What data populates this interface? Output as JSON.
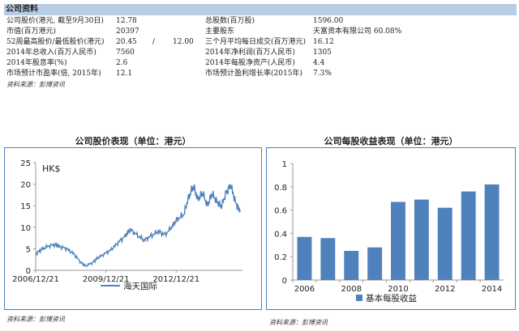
{
  "info": {
    "header": "公司资料",
    "rows": [
      {
        "l1": "公司股价(港元, 截至9月30日)",
        "v1": "12.78",
        "v1b": "",
        "v1c": "",
        "l2": "总股数(百万股)",
        "v2": "1596.00"
      },
      {
        "l1": "市值(百万港元)",
        "v1": "20397",
        "v1b": "",
        "v1c": "",
        "l2": "主要股东",
        "v2": "天富资本有限公司 60.08%"
      },
      {
        "l1": "52周最高股价/最低股价(港元)",
        "v1": "20.45",
        "v1b": "/",
        "v1c": "12.00",
        "l2": "三个月平均每日成交(百万港元)",
        "v2": "16.12"
      },
      {
        "l1": "2014年总收入(百万人民币)",
        "v1": "7560",
        "v1b": "",
        "v1c": "",
        "l2": "2014年净利润(百万人民币)",
        "v2": "1305"
      },
      {
        "l1": "2014年股息率(%)",
        "v1": "2.6",
        "v1b": "",
        "v1c": "",
        "l2": "2014年每股净资产(人民币)",
        "v2": "4.4"
      },
      {
        "l1": "市场预计市盈率(倍, 2015年)",
        "v1": "12.1",
        "v1b": "",
        "v1c": "",
        "l2": "市场预计盈利增长率(2015年)",
        "v2": "7.3%"
      }
    ],
    "source": "资料来源：彭博资讯"
  },
  "chart_data": [
    {
      "type": "line",
      "title": "公司股价表现（单位：港元）",
      "unit_label": "HK$",
      "ylim": [
        0,
        25
      ],
      "y_ticks": [
        "0",
        "5",
        "10",
        "15",
        "20",
        "25"
      ],
      "x_ticks": [
        "2006/12/21",
        "2009/12/21",
        "2012/12/21"
      ],
      "series": [
        {
          "name": "海天国际",
          "color": "#4f81bd",
          "x": [
            2006.97,
            2007.2,
            2007.5,
            2007.8,
            2008.0,
            2008.3,
            2008.6,
            2008.9,
            2009.1,
            2009.4,
            2009.6,
            2009.9,
            2010.2,
            2010.5,
            2010.8,
            2011.0,
            2011.3,
            2011.6,
            2011.9,
            2012.2,
            2012.5,
            2012.8,
            2013.0,
            2013.3,
            2013.5,
            2013.7,
            2013.9,
            2014.1,
            2014.3,
            2014.5,
            2014.7,
            2014.9,
            2015.1,
            2015.3,
            2015.5,
            2015.7
          ],
          "values": [
            3.8,
            4.8,
            5.6,
            6.0,
            5.5,
            5.0,
            3.8,
            1.8,
            1.0,
            1.8,
            2.8,
            3.8,
            4.8,
            6.5,
            8.0,
            9.5,
            8.2,
            7.0,
            8.0,
            9.0,
            8.3,
            10.2,
            11.8,
            13.0,
            17.0,
            19.5,
            16.5,
            18.0,
            15.0,
            17.8,
            16.0,
            14.8,
            18.0,
            19.8,
            15.8,
            13.5
          ]
        }
      ]
    },
    {
      "type": "bar",
      "title": "公司每股收益表现（单位：港元）",
      "categories": [
        "2006",
        "2007",
        "2008",
        "2009",
        "2010",
        "2011",
        "2012",
        "2013",
        "2014"
      ],
      "x_tick_labels": [
        "2006",
        "",
        "2008",
        "",
        "2010",
        "",
        "2012",
        "",
        "2014"
      ],
      "ylim": [
        0,
        1
      ],
      "y_ticks": [
        "0",
        "0.2",
        "0.4",
        "0.6",
        "0.8",
        "1"
      ],
      "series": [
        {
          "name": "基本每股收益",
          "color": "#4f81bd",
          "values": [
            0.37,
            0.36,
            0.25,
            0.28,
            0.67,
            0.69,
            0.62,
            0.76,
            0.82
          ]
        }
      ]
    }
  ],
  "sources": {
    "left": "资料来源：彭博资讯",
    "right": "资料来源：彭博资讯"
  }
}
